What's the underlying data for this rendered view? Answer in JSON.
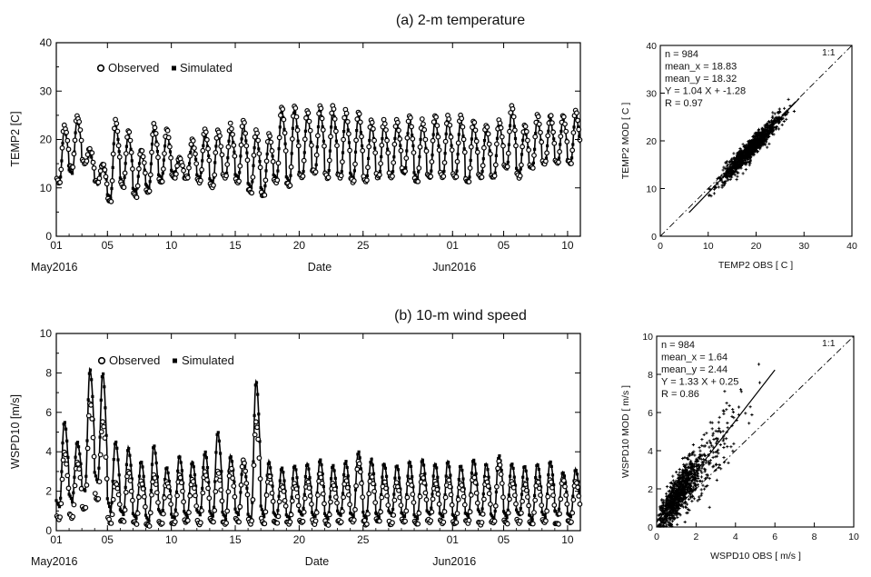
{
  "chart_data": [
    {
      "id": "temp_ts",
      "type": "line",
      "title": "(a) 2-m temperature",
      "xlabel": "Date",
      "ylabel": "TEMP2 [C]",
      "x_range_days": [
        0,
        41
      ],
      "ylim": [
        0,
        40
      ],
      "yticks": [
        0,
        10,
        20,
        30,
        40
      ],
      "xticks": [
        {
          "day": 0,
          "label": "01"
        },
        {
          "day": 4,
          "label": "05"
        },
        {
          "day": 9,
          "label": "10"
        },
        {
          "day": 14,
          "label": "15"
        },
        {
          "day": 19,
          "label": "20"
        },
        {
          "day": 24,
          "label": "25"
        },
        {
          "day": 31,
          "label": "01"
        },
        {
          "day": 35,
          "label": "05"
        },
        {
          "day": 40,
          "label": "10"
        }
      ],
      "month_labels": [
        {
          "day": 0,
          "label": "May2016"
        },
        {
          "day": 31,
          "label": "Jun2016"
        }
      ],
      "legend": {
        "observed": "Observed",
        "simulated": "Simulated",
        "position": "top-left"
      },
      "series": [
        {
          "name": "Observed",
          "marker": "open-circle",
          "daily_min": [
            11,
            14,
            15,
            11,
            7,
            10,
            8,
            9,
            11,
            12,
            12,
            11,
            10,
            12,
            11,
            9,
            8,
            11,
            10,
            12,
            13,
            12,
            12,
            11,
            11,
            12,
            12,
            13,
            11,
            12,
            12,
            12,
            11,
            12,
            12,
            14,
            12,
            14,
            15,
            15,
            15
          ],
          "daily_max": [
            23,
            25,
            18,
            15,
            24,
            22,
            18,
            23,
            22,
            16,
            20,
            22,
            22,
            23,
            24,
            22,
            21,
            27,
            27,
            26,
            27,
            27,
            26,
            26,
            24,
            24,
            24,
            25,
            24,
            25,
            25,
            25,
            24,
            23,
            24,
            27,
            23,
            25,
            25,
            25,
            26
          ]
        },
        {
          "name": "Simulated",
          "marker": "filled-square",
          "daily_min": [
            11,
            13,
            15,
            11,
            8,
            11,
            9,
            10,
            12,
            13,
            12,
            12,
            11,
            12,
            12,
            10,
            9,
            12,
            11,
            12,
            13,
            12,
            12,
            12,
            11,
            12,
            12,
            13,
            12,
            12,
            12,
            12,
            11,
            12,
            12,
            14,
            13,
            14,
            15,
            15,
            15
          ],
          "daily_max": [
            22,
            24,
            17,
            15,
            23,
            21,
            17,
            22,
            21,
            16,
            19,
            21,
            21,
            22,
            23,
            21,
            20,
            26,
            26,
            25,
            26,
            26,
            25,
            25,
            23,
            23,
            23,
            24,
            23,
            24,
            24,
            24,
            23,
            22,
            23,
            26,
            22,
            24,
            24,
            24,
            25
          ]
        }
      ]
    },
    {
      "id": "temp_scatter",
      "type": "scatter",
      "xlabel": "TEMP2 OBS [ C ]",
      "ylabel": "TEMP2 MOD [ C ]",
      "xlim": [
        0,
        40
      ],
      "ylim": [
        0,
        40
      ],
      "xticks": [
        "0",
        "10",
        "20",
        "30",
        "40"
      ],
      "yticks": [
        "0",
        "10",
        "20",
        "30",
        "40"
      ],
      "one_to_one_label": "1:1",
      "stats": [
        "n = 984",
        "mean_x = 18.83",
        "mean_y = 18.32",
        "Y = 1.04 X + -1.28",
        "R = 0.97"
      ],
      "fit": {
        "slope": 1.04,
        "intercept": -1.28,
        "x_range": [
          6,
          29
        ]
      },
      "points": {
        "n": 984,
        "mean_x": 18.83,
        "x_min": 7,
        "x_max": 29,
        "spread": 1.5
      }
    },
    {
      "id": "wind_ts",
      "type": "line",
      "title": "(b) 10-m wind speed",
      "xlabel": "Date",
      "ylabel": "WSPD10 [m/s]",
      "x_range_days": [
        0,
        41
      ],
      "ylim": [
        0,
        10
      ],
      "yticks": [
        0,
        2,
        4,
        6,
        8,
        10
      ],
      "xticks": [
        {
          "day": 0,
          "label": "01"
        },
        {
          "day": 4,
          "label": "05"
        },
        {
          "day": 9,
          "label": "10"
        },
        {
          "day": 14,
          "label": "15"
        },
        {
          "day": 19,
          "label": "20"
        },
        {
          "day": 24,
          "label": "25"
        },
        {
          "day": 31,
          "label": "01"
        },
        {
          "day": 35,
          "label": "05"
        },
        {
          "day": 40,
          "label": "10"
        }
      ],
      "month_labels": [
        {
          "day": 0,
          "label": "May2016"
        },
        {
          "day": 31,
          "label": "Jun2016"
        }
      ],
      "legend": {
        "observed": "Observed",
        "simulated": "Simulated",
        "position": "top-left"
      },
      "series": [
        {
          "name": "Observed",
          "marker": "open-circle",
          "daily_min": [
            0.5,
            0.6,
            1.0,
            1.5,
            0.3,
            0.4,
            0.3,
            0.2,
            0.3,
            0.3,
            0.4,
            0.3,
            0.4,
            0.3,
            0.4,
            0.3,
            0.3,
            0.3,
            0.3,
            0.4,
            0.4,
            0.3,
            0.4,
            0.4,
            0.3,
            0.4,
            0.3,
            0.4,
            0.3,
            0.4,
            0.4,
            0.3,
            0.4,
            0.3,
            0.4,
            0.3,
            0.4,
            0.3,
            0.4,
            0.3,
            0.4
          ],
          "daily_max": [
            4.0,
            3.5,
            6.5,
            5.5,
            2.5,
            3.0,
            2.5,
            2.8,
            2.5,
            2.8,
            2.6,
            3.0,
            3.0,
            3.2,
            3.6,
            5.5,
            2.8,
            2.3,
            2.4,
            2.5,
            2.8,
            2.4,
            2.6,
            3.5,
            2.8,
            2.5,
            2.4,
            2.6,
            2.8,
            2.5,
            2.6,
            2.4,
            2.8,
            2.6,
            3.5,
            2.5,
            2.4,
            2.5,
            2.6,
            2.6,
            2.5
          ]
        },
        {
          "name": "Simulated",
          "marker": "filled-square",
          "daily_min": [
            1.2,
            1.5,
            2.0,
            2.5,
            1.0,
            0.8,
            0.6,
            0.5,
            0.8,
            0.6,
            0.7,
            0.8,
            0.7,
            0.6,
            0.8,
            0.6,
            0.7,
            0.7,
            0.6,
            0.8,
            0.7,
            0.6,
            0.8,
            0.7,
            0.6,
            0.7,
            0.8,
            0.7,
            0.6,
            0.8,
            0.7,
            0.6,
            0.7,
            0.8,
            0.6,
            0.7,
            0.8,
            0.6,
            0.7,
            0.8,
            0.7
          ],
          "daily_max": [
            5.5,
            4.5,
            8.2,
            8.0,
            4.5,
            4.2,
            3.5,
            4.3,
            3.2,
            3.8,
            3.5,
            4.0,
            5.0,
            3.8,
            3.5,
            7.6,
            3.5,
            3.2,
            3.3,
            3.4,
            3.6,
            3.3,
            3.5,
            4.0,
            3.6,
            3.4,
            3.3,
            3.5,
            3.6,
            3.4,
            3.5,
            3.3,
            3.6,
            3.4,
            3.8,
            3.4,
            3.3,
            3.4,
            3.5,
            3.0,
            3.1
          ]
        }
      ]
    },
    {
      "id": "wind_scatter",
      "type": "scatter",
      "xlabel": "WSPD10 OBS [ m/s ]",
      "ylabel": "WSPD10 MOD [ m/s ]",
      "xlim": [
        0,
        10
      ],
      "ylim": [
        0,
        10
      ],
      "xticks": [
        "0",
        "2",
        "4",
        "6",
        "8",
        "10"
      ],
      "yticks": [
        "0",
        "2",
        "4",
        "6",
        "8",
        "10"
      ],
      "one_to_one_label": "1:1",
      "stats": [
        "n = 984",
        "mean_x = 1.64",
        "mean_y = 2.44",
        "Y = 1.33 X + 0.25",
        "R = 0.86"
      ],
      "fit": {
        "slope": 1.33,
        "intercept": 0.25,
        "x_range": [
          0,
          6
        ]
      },
      "points": {
        "n": 984,
        "mean_x": 1.64,
        "x_min": 0,
        "x_max": 5.8,
        "spread": 1.0
      }
    }
  ]
}
